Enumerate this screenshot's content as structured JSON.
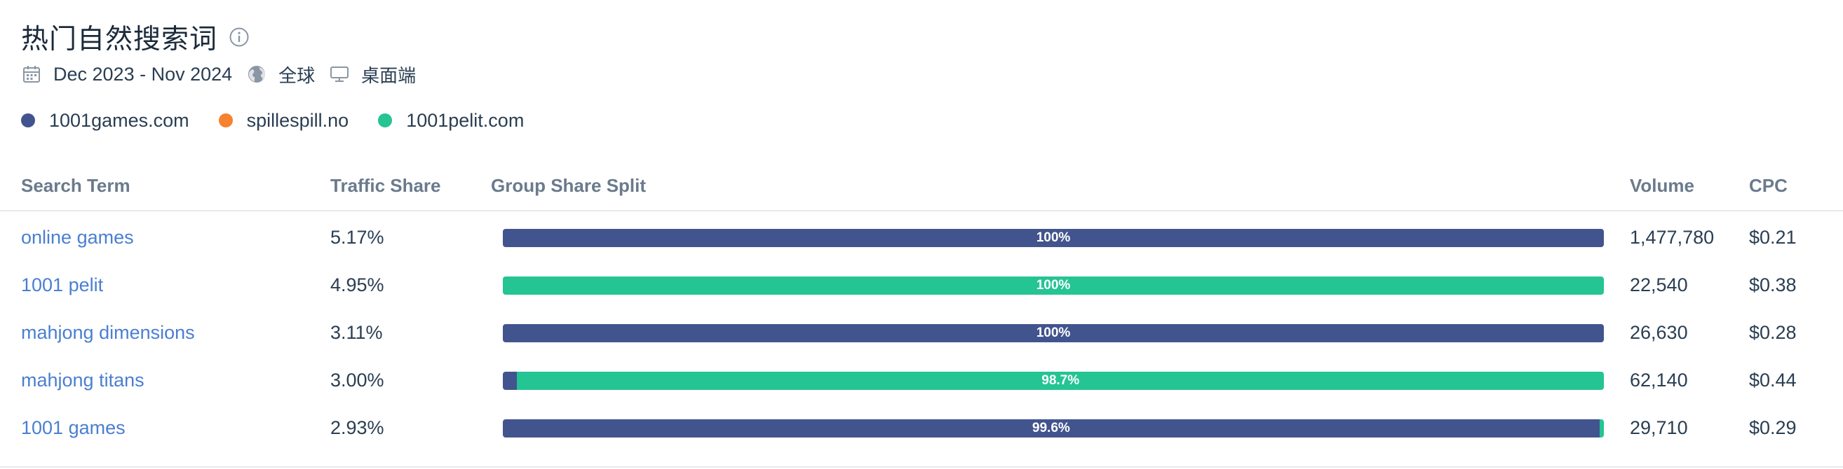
{
  "header": {
    "title": "热门自然搜索词",
    "date_range": "Dec 2023 - Nov 2024",
    "region": "全球",
    "device": "桌面端"
  },
  "colors": {
    "1001games": "#42548e",
    "spillespill": "#f6812f",
    "1001pelit": "#24c493"
  },
  "legend": [
    {
      "label": "1001games.com",
      "color": "#42548e"
    },
    {
      "label": "spillespill.no",
      "color": "#f6812f"
    },
    {
      "label": "1001pelit.com",
      "color": "#24c493"
    }
  ],
  "table": {
    "headers": {
      "term": "Search Term",
      "traffic_share": "Traffic Share",
      "group_share": "Group Share Split",
      "volume": "Volume",
      "cpc": "CPC"
    },
    "rows": [
      {
        "term": "online games",
        "traffic_share": "5.17%",
        "volume": "1,477,780",
        "cpc": "$0.21",
        "split": [
          {
            "site": "1001games.com",
            "share": 100,
            "color": "#42548e"
          }
        ],
        "bar_label": "100%",
        "label_share": 100
      },
      {
        "term": "1001 pelit",
        "traffic_share": "4.95%",
        "volume": "22,540",
        "cpc": "$0.38",
        "split": [
          {
            "site": "1001pelit.com",
            "share": 100,
            "color": "#24c493"
          }
        ],
        "bar_label": "100%",
        "label_share": 100
      },
      {
        "term": "mahjong dimensions",
        "traffic_share": "3.11%",
        "volume": "26,630",
        "cpc": "$0.28",
        "split": [
          {
            "site": "1001games.com",
            "share": 100,
            "color": "#42548e"
          }
        ],
        "bar_label": "100%",
        "label_share": 100
      },
      {
        "term": "mahjong titans",
        "traffic_share": "3.00%",
        "volume": "62,140",
        "cpc": "$0.44",
        "split": [
          {
            "site": "1001games.com",
            "share": 1.3,
            "color": "#42548e"
          },
          {
            "site": "1001pelit.com",
            "share": 98.7,
            "color": "#24c493"
          }
        ],
        "bar_label": "98.7%",
        "label_share": 98.7
      },
      {
        "term": "1001 games",
        "traffic_share": "2.93%",
        "volume": "29,710",
        "cpc": "$0.29",
        "split": [
          {
            "site": "1001games.com",
            "share": 99.6,
            "color": "#42548e"
          },
          {
            "site": "1001pelit.com",
            "share": 0.4,
            "color": "#24c493"
          }
        ],
        "bar_label": "99.6%",
        "label_share": 99.6
      }
    ]
  }
}
